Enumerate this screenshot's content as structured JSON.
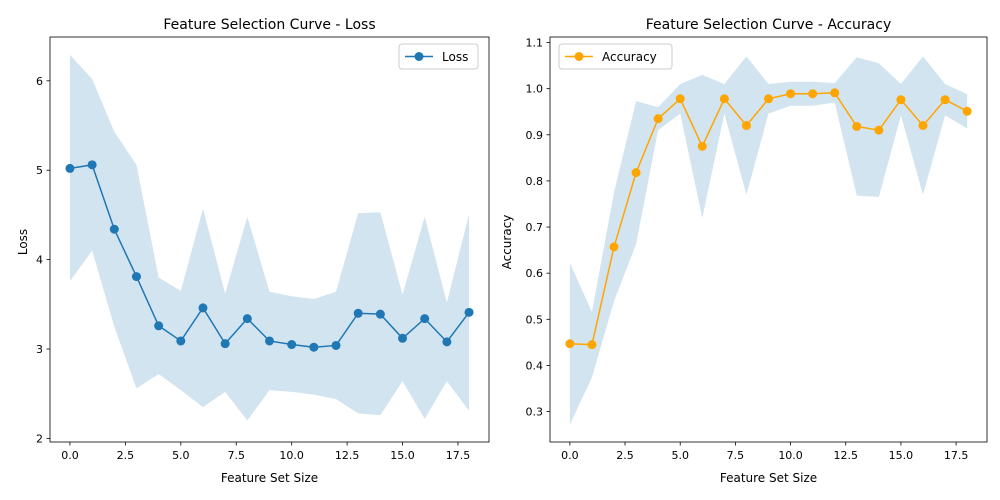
{
  "chart_data": [
    {
      "type": "line",
      "title": "Feature Selection Curve - Loss",
      "xlabel": "Feature Set Size",
      "ylabel": "Loss",
      "xlim": [
        -0.9,
        18.9
      ],
      "ylim": [
        1.96,
        6.49
      ],
      "xticks": [
        0,
        2.5,
        5,
        7.5,
        10,
        12.5,
        15,
        17.5
      ],
      "xtick_labels": [
        "0.0",
        "2.5",
        "5.0",
        "7.5",
        "10.0",
        "12.5",
        "15.0",
        "17.5"
      ],
      "yticks": [
        2,
        3,
        4,
        5,
        6
      ],
      "ytick_labels": [
        "2",
        "3",
        "4",
        "5",
        "6"
      ],
      "grid": false,
      "legend": "upper right",
      "x": [
        0,
        1,
        2,
        3,
        4,
        5,
        6,
        7,
        8,
        9,
        10,
        11,
        12,
        13,
        14,
        15,
        16,
        17,
        18
      ],
      "series": [
        {
          "name": "Loss",
          "color": "#1f77b4",
          "marker": "circle",
          "values": [
            5.02,
            5.06,
            4.34,
            3.81,
            3.26,
            3.09,
            3.46,
            3.06,
            3.34,
            3.09,
            3.05,
            3.02,
            3.04,
            3.4,
            3.39,
            3.12,
            3.34,
            3.08,
            3.41
          ],
          "band_upper": [
            6.29,
            6.02,
            5.43,
            5.06,
            3.8,
            3.65,
            4.57,
            3.62,
            4.48,
            3.64,
            3.59,
            3.56,
            3.64,
            4.52,
            4.53,
            3.61,
            4.48,
            3.52,
            4.51
          ],
          "band_lower": [
            3.76,
            4.1,
            3.25,
            2.56,
            2.72,
            2.54,
            2.35,
            2.52,
            2.2,
            2.54,
            2.52,
            2.49,
            2.44,
            2.28,
            2.26,
            2.64,
            2.22,
            2.64,
            2.31
          ],
          "band_color": "#1f77b4"
        }
      ]
    },
    {
      "type": "line",
      "title": "Feature Selection Curve - Accuracy",
      "xlabel": "Feature Set Size",
      "ylabel": "Accuracy",
      "xlim": [
        -0.9,
        18.9
      ],
      "ylim": [
        0.234,
        1.112
      ],
      "xticks": [
        0,
        2.5,
        5,
        7.5,
        10,
        12.5,
        15,
        17.5
      ],
      "xtick_labels": [
        "0.0",
        "2.5",
        "5.0",
        "7.5",
        "10.0",
        "12.5",
        "15.0",
        "17.5"
      ],
      "yticks": [
        0.3,
        0.4,
        0.5,
        0.6,
        0.7,
        0.8,
        0.9,
        1.0,
        1.1
      ],
      "ytick_labels": [
        "0.3",
        "0.4",
        "0.5",
        "0.6",
        "0.7",
        "0.8",
        "0.9",
        "1.0",
        "1.1"
      ],
      "grid": false,
      "legend": "upper left",
      "x": [
        0,
        1,
        2,
        3,
        4,
        5,
        6,
        7,
        8,
        9,
        10,
        11,
        12,
        13,
        14,
        15,
        16,
        17,
        18
      ],
      "series": [
        {
          "name": "Accuracy",
          "color": "#ffa500",
          "marker": "circle",
          "values": [
            0.447,
            0.445,
            0.657,
            0.818,
            0.935,
            0.978,
            0.875,
            0.978,
            0.92,
            0.978,
            0.989,
            0.989,
            0.991,
            0.918,
            0.91,
            0.976,
            0.92,
            0.976,
            0.951
          ],
          "band_upper": [
            0.622,
            0.516,
            0.775,
            0.973,
            0.96,
            1.01,
            1.03,
            1.01,
            1.07,
            1.01,
            1.015,
            1.015,
            1.012,
            1.068,
            1.055,
            1.01,
            1.07,
            1.01,
            0.988
          ],
          "band_lower": [
            0.272,
            0.374,
            0.539,
            0.663,
            0.91,
            0.946,
            0.72,
            0.946,
            0.77,
            0.946,
            0.963,
            0.963,
            0.97,
            0.768,
            0.765,
            0.942,
            0.77,
            0.942,
            0.914
          ],
          "band_color": "#1f77b4"
        }
      ]
    }
  ]
}
